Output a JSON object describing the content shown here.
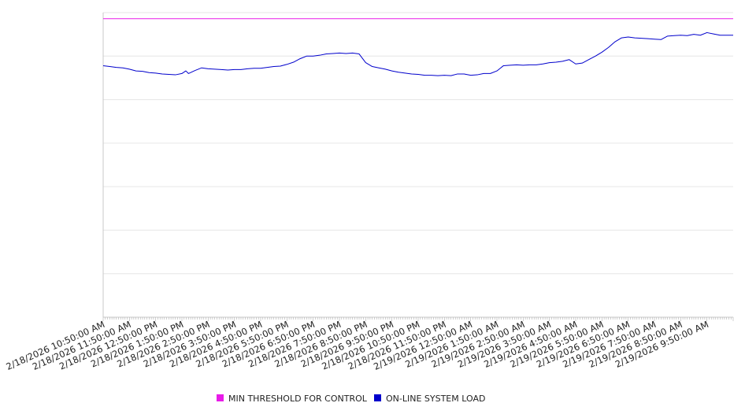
{
  "chart_data": {
    "type": "line",
    "title": "",
    "xlabel": "",
    "ylabel": "",
    "x_ticks": [
      "2/18/2026 10:50:00 AM",
      "2/18/2026 11:50:00 AM",
      "2/18/2026 12:50:00 PM",
      "2/18/2026 1:50:00 PM",
      "2/18/2026 2:50:00 PM",
      "2/18/2026 3:50:00 PM",
      "2/18/2026 4:50:00 PM",
      "2/18/2026 5:50:00 PM",
      "2/18/2026 6:50:00 PM",
      "2/18/2026 7:50:00 PM",
      "2/18/2026 8:50:00 PM",
      "2/18/2026 9:50:00 PM",
      "2/18/2026 10:50:00 PM",
      "2/18/2026 11:50:00 PM",
      "2/19/2026 12:50:00 AM",
      "2/19/2026 1:50:00 AM",
      "2/19/2026 2:50:00 AM",
      "2/19/2026 3:50:00 AM",
      "2/19/2026 4:50:00 AM",
      "2/19/2026 5:50:00 AM",
      "2/19/2026 6:50:00 AM",
      "2/19/2026 7:50:00 AM",
      "2/19/2026 8:50:00 AM",
      "2/19/2026 9:50:00 AM"
    ],
    "x_range_hours": [
      0,
      24
    ],
    "y_range": [
      0,
      7
    ],
    "y_ticks_shown": false,
    "grid": "horizontal",
    "legend_position": "bottom-center",
    "series": [
      {
        "name": "MIN THRESHOLD FOR CONTROL",
        "color": "#e81be8",
        "points": [
          [
            0,
            6.86
          ],
          [
            24,
            6.86
          ]
        ]
      },
      {
        "name": "ON-LINE SYSTEM LOAD",
        "color": "#0000cc",
        "points": [
          [
            0,
            5.78
          ],
          [
            0.25,
            5.76
          ],
          [
            0.5,
            5.74
          ],
          [
            0.75,
            5.73
          ],
          [
            1.0,
            5.7
          ],
          [
            1.25,
            5.66
          ],
          [
            1.5,
            5.65
          ],
          [
            1.75,
            5.62
          ],
          [
            2.0,
            5.61
          ],
          [
            2.25,
            5.59
          ],
          [
            2.5,
            5.58
          ],
          [
            2.75,
            5.57
          ],
          [
            3.0,
            5.6
          ],
          [
            3.15,
            5.66
          ],
          [
            3.25,
            5.6
          ],
          [
            3.5,
            5.67
          ],
          [
            3.75,
            5.73
          ],
          [
            4.0,
            5.71
          ],
          [
            4.25,
            5.7
          ],
          [
            4.5,
            5.69
          ],
          [
            4.75,
            5.68
          ],
          [
            5.0,
            5.69
          ],
          [
            5.25,
            5.69
          ],
          [
            5.5,
            5.71
          ],
          [
            5.75,
            5.72
          ],
          [
            6.0,
            5.72
          ],
          [
            6.25,
            5.74
          ],
          [
            6.5,
            5.76
          ],
          [
            6.75,
            5.77
          ],
          [
            7.0,
            5.81
          ],
          [
            7.25,
            5.86
          ],
          [
            7.5,
            5.94
          ],
          [
            7.75,
            6.0
          ],
          [
            8.0,
            6.0
          ],
          [
            8.25,
            6.02
          ],
          [
            8.5,
            6.05
          ],
          [
            8.75,
            6.06
          ],
          [
            9.0,
            6.07
          ],
          [
            9.25,
            6.06
          ],
          [
            9.5,
            6.07
          ],
          [
            9.75,
            6.05
          ],
          [
            10.0,
            5.85
          ],
          [
            10.25,
            5.76
          ],
          [
            10.5,
            5.73
          ],
          [
            10.75,
            5.7
          ],
          [
            11.0,
            5.66
          ],
          [
            11.25,
            5.63
          ],
          [
            11.5,
            5.61
          ],
          [
            11.75,
            5.59
          ],
          [
            12.0,
            5.58
          ],
          [
            12.25,
            5.56
          ],
          [
            12.5,
            5.56
          ],
          [
            12.75,
            5.55
          ],
          [
            13.0,
            5.56
          ],
          [
            13.25,
            5.55
          ],
          [
            13.5,
            5.59
          ],
          [
            13.75,
            5.59
          ],
          [
            14.0,
            5.56
          ],
          [
            14.25,
            5.57
          ],
          [
            14.5,
            5.6
          ],
          [
            14.75,
            5.6
          ],
          [
            15.0,
            5.66
          ],
          [
            15.25,
            5.78
          ],
          [
            15.5,
            5.79
          ],
          [
            15.75,
            5.8
          ],
          [
            16.0,
            5.79
          ],
          [
            16.25,
            5.8
          ],
          [
            16.5,
            5.8
          ],
          [
            16.75,
            5.82
          ],
          [
            17.0,
            5.85
          ],
          [
            17.25,
            5.86
          ],
          [
            17.5,
            5.88
          ],
          [
            17.75,
            5.92
          ],
          [
            18.0,
            5.82
          ],
          [
            18.25,
            5.84
          ],
          [
            18.5,
            5.92
          ],
          [
            18.75,
            6.0
          ],
          [
            19.0,
            6.09
          ],
          [
            19.25,
            6.2
          ],
          [
            19.5,
            6.33
          ],
          [
            19.75,
            6.42
          ],
          [
            20.0,
            6.44
          ],
          [
            20.25,
            6.42
          ],
          [
            20.5,
            6.41
          ],
          [
            20.75,
            6.4
          ],
          [
            21.0,
            6.39
          ],
          [
            21.25,
            6.38
          ],
          [
            21.5,
            6.46
          ],
          [
            21.75,
            6.47
          ],
          [
            22.0,
            6.48
          ],
          [
            22.25,
            6.47
          ],
          [
            22.5,
            6.5
          ],
          [
            22.75,
            6.48
          ],
          [
            23.0,
            6.54
          ],
          [
            23.25,
            6.51
          ],
          [
            23.5,
            6.48
          ],
          [
            23.75,
            6.48
          ],
          [
            24.0,
            6.48
          ]
        ]
      }
    ]
  }
}
